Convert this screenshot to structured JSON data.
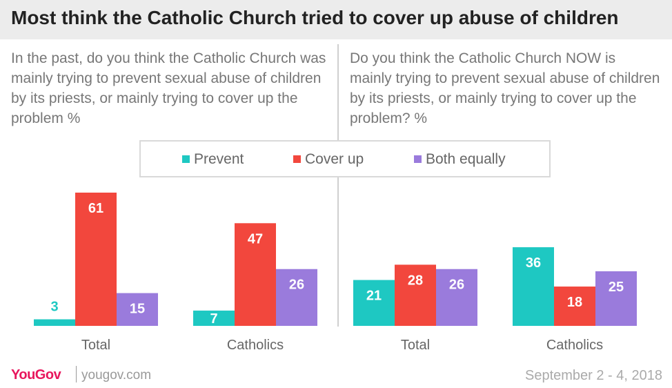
{
  "title": "Most think the Catholic Church tried to cover up abuse of children",
  "questions": {
    "left": "In the past, do you think the Catholic Church was mainly trying to prevent sexual abuse of children by its priests, or mainly trying to cover up the problem %",
    "right": "Do you think the Catholic Church NOW is mainly trying to prevent sexual abuse of children by its priests, or mainly trying to cover up the problem? %"
  },
  "legend": [
    {
      "label": "Prevent",
      "color": "#1ec8c2"
    },
    {
      "label": "Cover up",
      "color": "#f2473d"
    },
    {
      "label": "Both equally",
      "color": "#9a7bdc"
    }
  ],
  "chart_data": [
    {
      "type": "bar",
      "categories": [
        "Total",
        "Catholics"
      ],
      "series": [
        {
          "name": "Prevent",
          "values": [
            3,
            7
          ]
        },
        {
          "name": "Cover up",
          "values": [
            61,
            47
          ]
        },
        {
          "name": "Both equally",
          "values": [
            15,
            26
          ]
        }
      ],
      "ylim": [
        0,
        61
      ]
    },
    {
      "type": "bar",
      "categories": [
        "Total",
        "Catholics"
      ],
      "series": [
        {
          "name": "Prevent",
          "values": [
            21,
            36
          ]
        },
        {
          "name": "Cover up",
          "values": [
            28,
            18
          ]
        },
        {
          "name": "Both equally",
          "values": [
            26,
            25
          ]
        }
      ],
      "ylim": [
        0,
        61
      ]
    }
  ],
  "footer": {
    "logo": "YouGov",
    "site": "yougov.com",
    "date": "September 2 - 4, 2018"
  }
}
